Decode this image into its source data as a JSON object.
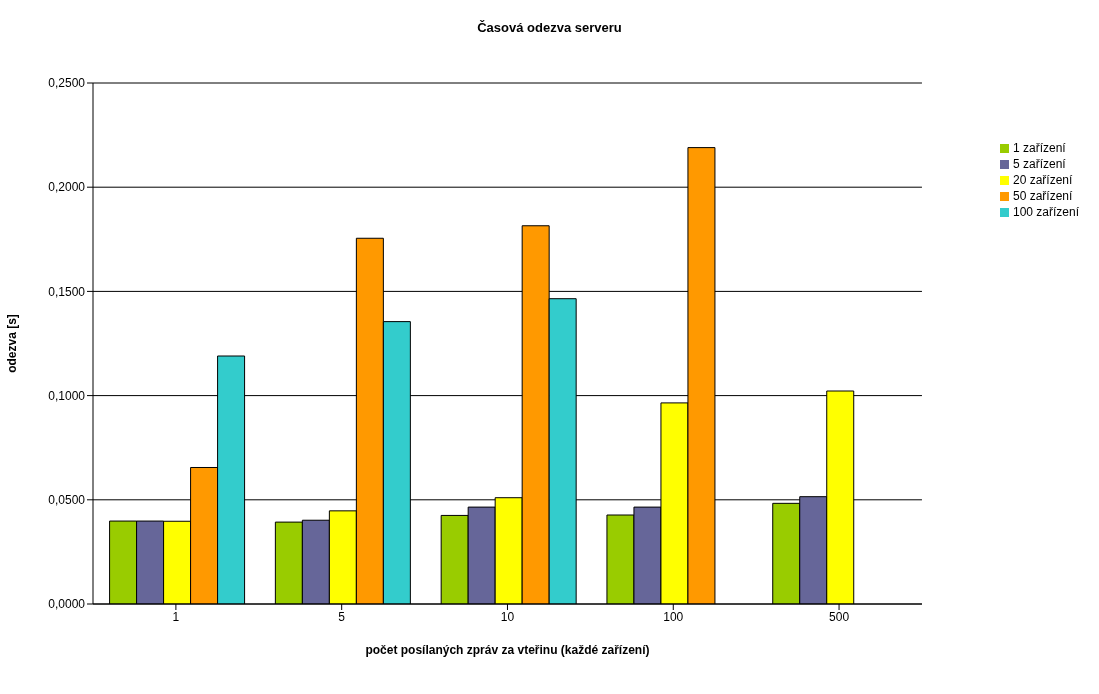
{
  "chart_data": {
    "type": "bar",
    "title": "Časová odezva serveru",
    "xlabel": "počet posílaných zpráv za vteřinu (každé zařízení)",
    "ylabel": "odezva [s]",
    "categories": [
      "1",
      "5",
      "10",
      "100",
      "500"
    ],
    "series": [
      {
        "name": "1 zařízení",
        "color": "#99cc00",
        "values": [
          0.0398,
          0.0393,
          0.0425,
          0.0427,
          0.0483
        ]
      },
      {
        "name": "5 zařízení",
        "color": "#666699",
        "values": [
          0.0398,
          0.0402,
          0.0465,
          0.0465,
          0.0515
        ]
      },
      {
        "name": "20 zařízení",
        "color": "#ffff00",
        "values": [
          0.0397,
          0.0447,
          0.051,
          0.0965,
          0.1022
        ]
      },
      {
        "name": "50 zařízení",
        "color": "#ff9900",
        "values": [
          0.0655,
          0.1755,
          0.1815,
          0.219,
          null
        ]
      },
      {
        "name": "100 zařízení",
        "color": "#33cccc",
        "values": [
          0.119,
          0.1355,
          0.1465,
          null,
          null
        ]
      }
    ],
    "ylim": [
      0,
      0.25
    ],
    "yticks": [
      {
        "value": 0,
        "label": "0,0000"
      },
      {
        "value": 0.05,
        "label": "0,0500"
      },
      {
        "value": 0.1,
        "label": "0,1000"
      },
      {
        "value": 0.15,
        "label": "0,1500"
      },
      {
        "value": 0.2,
        "label": "0,2000"
      },
      {
        "value": 0.25,
        "label": "0,2500"
      }
    ],
    "grid": "y",
    "legend": "top right"
  }
}
